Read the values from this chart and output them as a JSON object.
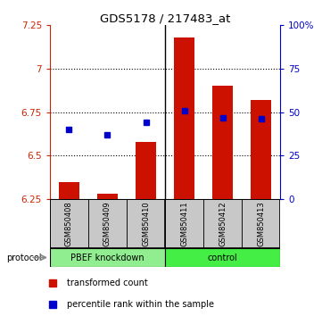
{
  "title": "GDS5178 / 217483_at",
  "samples": [
    "GSM850408",
    "GSM850409",
    "GSM850410",
    "GSM850411",
    "GSM850412",
    "GSM850413"
  ],
  "bar_bottom": 6.25,
  "transformed_counts": [
    6.35,
    6.28,
    6.58,
    7.18,
    6.9,
    6.82
  ],
  "percentile_ranks": [
    40,
    37,
    44,
    51,
    47,
    46
  ],
  "ylim_left": [
    6.25,
    7.25
  ],
  "ylim_right": [
    0,
    100
  ],
  "yticks_left": [
    6.25,
    6.5,
    6.75,
    7.0,
    7.25
  ],
  "yticks_left_labels": [
    "6.25",
    "6.5",
    "6.75",
    "7",
    "7.25"
  ],
  "yticks_right": [
    0,
    25,
    50,
    75,
    100
  ],
  "yticks_right_labels": [
    "0",
    "25",
    "50",
    "75",
    "100%"
  ],
  "bar_color": "#CC1100",
  "dot_color": "#0000CC",
  "left_axis_color": "#CC2200",
  "right_axis_color": "#0000CC",
  "sample_box_color": "#C8C8C8",
  "group_color_knockdown": "#90EE90",
  "group_color_control": "#44EE44",
  "group_label_knockdown": "PBEF knockdown",
  "group_label_control": "control",
  "protocol_label": "protocol",
  "legend_bar": "transformed count",
  "legend_dot": "percentile rank within the sample",
  "n_knockdown": 3,
  "n_control": 3
}
